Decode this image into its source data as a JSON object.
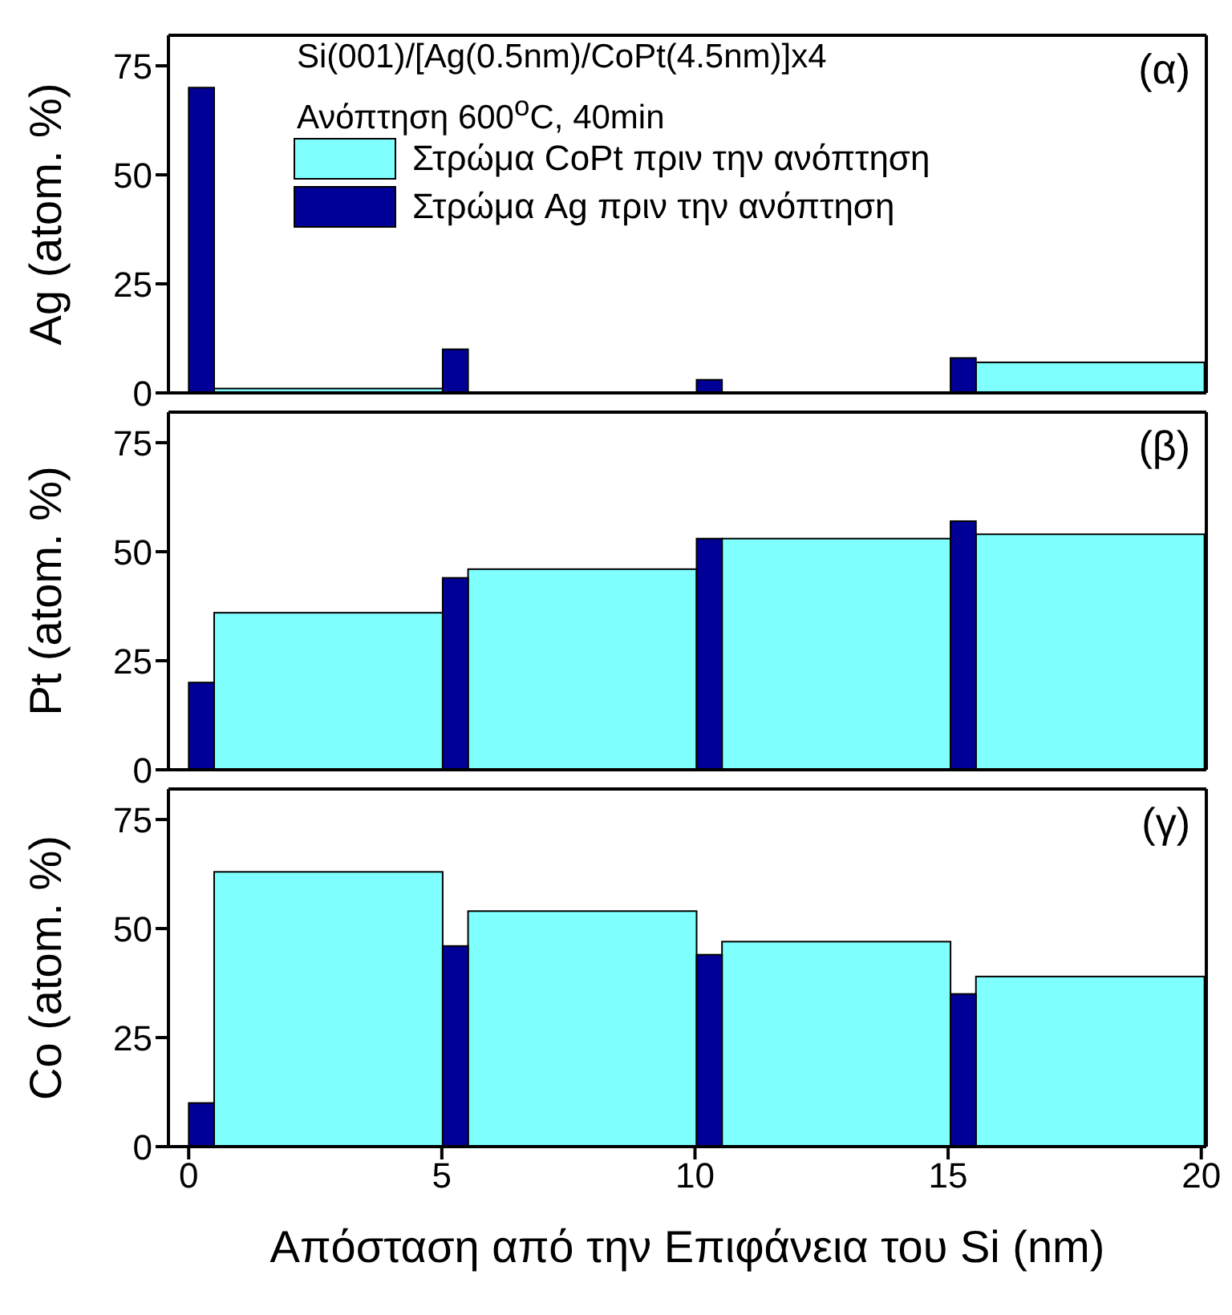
{
  "chart_data": [
    {
      "type": "histogram",
      "ylabel": "Ag (atom. %)",
      "bins": [
        0,
        0.5,
        5,
        5.5,
        10,
        10.5,
        15,
        15.5,
        20
      ],
      "xlim": [
        -0.4,
        20.1
      ],
      "xticks": [
        0,
        5,
        10,
        15,
        20
      ],
      "ylim": [
        0,
        82
      ],
      "yticks": [
        0,
        25,
        50,
        75
      ],
      "tick_labels": "y",
      "legend": "top left",
      "annotations": [
        "Si(001)/[Ag(0.5nm)/CoPt(4.5nm)]x4",
        "Ανόπτηση 600$^{o}$C, 40min",
        "(α)"
      ],
      "series": [
        {
          "name": "Στρώμα CoPt πριν την ανόπτηση",
          "color": "#80ffff",
          "values": [
            null,
            1,
            null,
            0,
            null,
            0,
            null,
            7
          ]
        },
        {
          "name": "Στρώμα Ag πριν την ανόπτηση",
          "color": "#000096",
          "values": [
            70,
            null,
            10,
            null,
            3,
            null,
            8,
            null
          ]
        }
      ]
    },
    {
      "type": "histogram",
      "ylabel": "Pt (atom. %)",
      "bins": [
        0,
        0.5,
        5,
        5.5,
        10,
        10.5,
        15,
        15.5,
        20
      ],
      "xlim": [
        -0.4,
        20.1
      ],
      "xticks": [
        0,
        5,
        10,
        15,
        20
      ],
      "ylim": [
        0,
        82
      ],
      "yticks": [
        0,
        25,
        50,
        75
      ],
      "tick_labels": "y",
      "annotations": [
        "(β)"
      ],
      "series": [
        {
          "color": "#80ffff",
          "values": [
            null,
            36,
            null,
            46,
            null,
            53,
            null,
            54
          ]
        },
        {
          "color": "#000096",
          "values": [
            20,
            null,
            44,
            null,
            53,
            null,
            57,
            null
          ]
        }
      ]
    },
    {
      "type": "histogram",
      "ylabel": "Co (atom. %)",
      "xlabel": "Απόσταση από την Επιφάνεια του Si (nm)",
      "bins": [
        0,
        0.5,
        5,
        5.5,
        10,
        10.5,
        15,
        15.5,
        20
      ],
      "xlim": [
        -0.4,
        20.1
      ],
      "xticks": [
        0,
        5,
        10,
        15,
        20
      ],
      "ylim": [
        0,
        82
      ],
      "yticks": [
        0,
        25,
        50,
        75
      ],
      "annotations": [
        "(γ)"
      ],
      "series": [
        {
          "color": "#80ffff",
          "values": [
            null,
            63,
            null,
            54,
            null,
            47,
            null,
            39
          ]
        },
        {
          "color": "#000096",
          "values": [
            10,
            null,
            46,
            null,
            44,
            null,
            35,
            null
          ]
        }
      ]
    }
  ]
}
